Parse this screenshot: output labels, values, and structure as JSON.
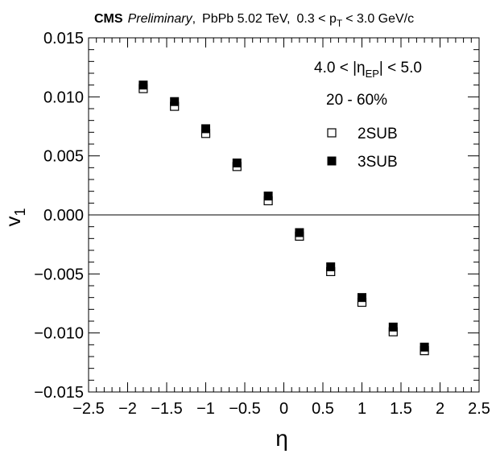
{
  "header": {
    "experiment": "CMS",
    "status": "Preliminary",
    "comma": ",",
    "system": "PbPb 5.02 TeV,",
    "kin_lower": "0.3 < p",
    "kin_sub": "T",
    "kin_upper": "< 3.0 GeV/c"
  },
  "chart_data": {
    "type": "scatter",
    "xlabel": "η",
    "ylabel_main": "v",
    "ylabel_sub": "1",
    "xlim": [
      -2.5,
      2.5
    ],
    "ylim": [
      -0.015,
      0.015
    ],
    "x_ticks": [
      {
        "value": -2.5,
        "label": "−2.5"
      },
      {
        "value": -2,
        "label": "−2"
      },
      {
        "value": -1.5,
        "label": "−1.5"
      },
      {
        "value": -1,
        "label": "−1"
      },
      {
        "value": -0.5,
        "label": "−0.5"
      },
      {
        "value": 0,
        "label": "0"
      },
      {
        "value": 0.5,
        "label": "0.5"
      },
      {
        "value": 1,
        "label": "1"
      },
      {
        "value": 1.5,
        "label": "1.5"
      },
      {
        "value": 2,
        "label": "2"
      },
      {
        "value": 2.5,
        "label": "2.5"
      }
    ],
    "y_ticks": [
      {
        "value": 0.015,
        "label": "0.015"
      },
      {
        "value": 0.01,
        "label": "0.010"
      },
      {
        "value": 0.005,
        "label": "0.005"
      },
      {
        "value": 0,
        "label": "0.000"
      },
      {
        "value": -0.005,
        "label": "−0.005"
      },
      {
        "value": -0.01,
        "label": "−0.010"
      },
      {
        "value": -0.015,
        "label": "−0.015"
      }
    ],
    "x_minor_step": 0.1,
    "y_minor_step": 0.001,
    "zero_line": true,
    "grid": false,
    "annotations": {
      "eta_range_pre": "4.0 < |η",
      "eta_range_sub": "EP",
      "eta_range_post": "| < 5.0",
      "centrality": "20 - 60%"
    },
    "legend_position": "top-right",
    "series": [
      {
        "name": "2SUB",
        "marker": "open-square",
        "color": "#000000",
        "x": [
          -1.8,
          -1.4,
          -1.0,
          -0.6,
          -0.2,
          0.2,
          0.6,
          1.0,
          1.4,
          1.8
        ],
        "y": [
          0.0107,
          0.0092,
          0.0069,
          0.0041,
          0.0012,
          -0.0018,
          -0.0048,
          -0.0074,
          -0.0099,
          -0.0115
        ]
      },
      {
        "name": "3SUB",
        "marker": "filled-square",
        "color": "#000000",
        "x": [
          -1.8,
          -1.4,
          -1.0,
          -0.6,
          -0.2,
          0.2,
          0.6,
          1.0,
          1.4,
          1.8
        ],
        "y": [
          0.011,
          0.0096,
          0.0073,
          0.0044,
          0.0016,
          -0.0015,
          -0.0044,
          -0.007,
          -0.0095,
          -0.0112
        ]
      }
    ]
  }
}
